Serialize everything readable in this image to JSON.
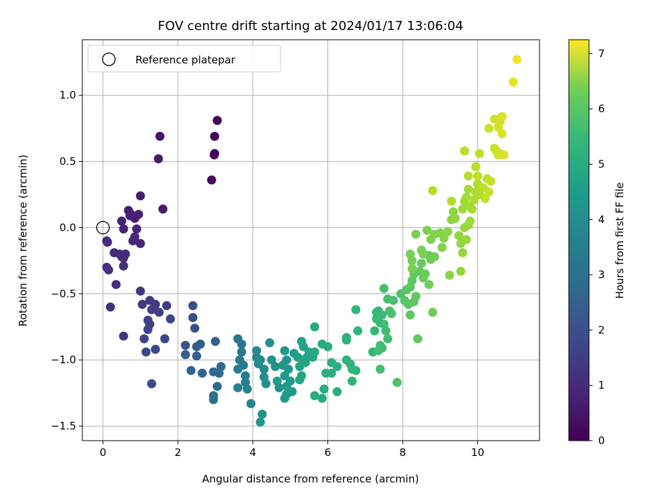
{
  "chart_data": {
    "type": "scatter",
    "title": "FOV centre drift starting at 2024/01/17 13:06:04",
    "xlabel": "Angular distance from reference (arcmin)",
    "ylabel": "Rotation from reference (arcmin)",
    "xlim": [
      -0.55,
      11.65
    ],
    "ylim": [
      -1.61,
      1.42
    ],
    "xticks": [
      0,
      2,
      4,
      6,
      8,
      10
    ],
    "xtick_labels": [
      "0",
      "2",
      "4",
      "6",
      "8",
      "10"
    ],
    "yticks": [
      -1.5,
      -1.0,
      -0.5,
      0.0,
      0.5,
      1.0
    ],
    "ytick_labels": [
      "−1.5",
      "−1.0",
      "−0.5",
      "0.0",
      "0.5",
      "1.0"
    ],
    "grid": true,
    "legend": {
      "placement": "upper-left",
      "entries": [
        {
          "label": "Reference platepar",
          "marker": "open-circle"
        }
      ]
    },
    "reference_point": {
      "x": 0,
      "y": 0
    },
    "colorbar": {
      "label": "Hours from first FF file",
      "colormap": "viridis",
      "range": [
        0,
        7.25
      ],
      "ticks": [
        0,
        1,
        2,
        3,
        4,
        5,
        6,
        7
      ],
      "tick_labels": [
        "0",
        "1",
        "2",
        "3",
        "4",
        "5",
        "6",
        "7"
      ]
    },
    "series": [
      {
        "columns": [
          "x",
          "y",
          "hours"
        ],
        "points": [
          [
            3.05,
            0.81,
            0.05
          ],
          [
            2.98,
            0.69,
            0.1
          ],
          [
            2.97,
            0.55,
            0.15
          ],
          [
            2.98,
            0.56,
            0.17
          ],
          [
            2.9,
            0.36,
            0.2
          ],
          [
            1.52,
            0.69,
            0.5
          ],
          [
            1.48,
            0.52,
            0.52
          ],
          [
            1.6,
            0.14,
            0.55
          ],
          [
            0.68,
            0.13,
            0.6
          ],
          [
            0.75,
            0.1,
            0.62
          ],
          [
            0.85,
            0.07,
            0.64
          ],
          [
            0.95,
            0.1,
            0.66
          ],
          [
            0.72,
            0.09,
            0.68
          ],
          [
            1.0,
            0.24,
            0.65
          ],
          [
            0.5,
            0.05,
            0.7
          ],
          [
            0.55,
            -0.01,
            0.72
          ],
          [
            0.9,
            -0.01,
            0.74
          ],
          [
            0.8,
            -0.1,
            0.76
          ],
          [
            1.0,
            -0.12,
            0.78
          ],
          [
            0.85,
            -0.07,
            0.8
          ],
          [
            0.1,
            -0.1,
            0.82
          ],
          [
            0.12,
            -0.11,
            0.84
          ],
          [
            0.3,
            -0.19,
            0.86
          ],
          [
            0.45,
            -0.2,
            0.88
          ],
          [
            0.6,
            -0.2,
            0.9
          ],
          [
            0.55,
            -0.23,
            0.92
          ],
          [
            0.5,
            -0.22,
            0.94
          ],
          [
            0.55,
            -0.29,
            0.96
          ],
          [
            0.1,
            -0.3,
            0.98
          ],
          [
            0.15,
            -0.32,
            1.0
          ],
          [
            0.35,
            -0.43,
            1.02
          ],
          [
            0.2,
            -0.6,
            1.05
          ],
          [
            0.55,
            -0.82,
            1.08
          ],
          [
            1.0,
            -0.48,
            1.2
          ],
          [
            1.05,
            -0.58,
            1.25
          ],
          [
            1.25,
            -0.55,
            1.28
          ],
          [
            1.4,
            -0.58,
            1.3
          ],
          [
            1.7,
            -0.59,
            1.33
          ],
          [
            1.3,
            -0.62,
            1.35
          ],
          [
            1.5,
            -0.64,
            1.38
          ],
          [
            1.2,
            -0.7,
            1.4
          ],
          [
            1.25,
            -0.73,
            1.42
          ],
          [
            1.2,
            -0.77,
            1.45
          ],
          [
            1.8,
            -0.69,
            1.48
          ],
          [
            1.1,
            -0.84,
            1.5
          ],
          [
            1.65,
            -0.84,
            1.53
          ],
          [
            1.4,
            -0.92,
            1.56
          ],
          [
            1.15,
            -0.94,
            1.6
          ],
          [
            1.3,
            -1.18,
            1.65
          ],
          [
            2.4,
            -0.59,
            1.7
          ],
          [
            2.4,
            -0.68,
            1.75
          ],
          [
            2.45,
            -0.76,
            1.8
          ],
          [
            2.2,
            -0.89,
            2.0
          ],
          [
            2.5,
            -0.9,
            2.05
          ],
          [
            2.6,
            -0.88,
            2.1
          ],
          [
            2.2,
            -0.96,
            2.15
          ],
          [
            2.5,
            -0.97,
            2.2
          ],
          [
            3.0,
            -0.86,
            2.25
          ],
          [
            2.35,
            -1.08,
            2.3
          ],
          [
            2.65,
            -1.1,
            2.35
          ],
          [
            2.95,
            -1.09,
            2.4
          ],
          [
            3.15,
            -1.05,
            2.45
          ],
          [
            3.1,
            -1.1,
            2.5
          ],
          [
            3.05,
            -1.2,
            2.55
          ],
          [
            2.95,
            -1.27,
            2.6
          ],
          [
            2.95,
            -1.3,
            2.62
          ],
          [
            3.6,
            -0.84,
            2.8
          ],
          [
            3.7,
            -0.88,
            2.85
          ],
          [
            3.7,
            -0.94,
            2.9
          ],
          [
            3.65,
            -1.0,
            2.95
          ],
          [
            3.75,
            -1.04,
            3.0
          ],
          [
            3.6,
            -1.07,
            3.05
          ],
          [
            3.8,
            -1.12,
            3.1
          ],
          [
            3.6,
            -1.21,
            3.15
          ],
          [
            3.8,
            -1.17,
            3.2
          ],
          [
            3.85,
            -1.22,
            3.25
          ],
          [
            3.95,
            -1.33,
            3.3
          ],
          [
            4.1,
            -0.93,
            3.35
          ],
          [
            4.1,
            -0.98,
            3.4
          ],
          [
            4.2,
            -1.0,
            3.45
          ],
          [
            4.15,
            -1.03,
            3.5
          ],
          [
            4.3,
            -1.07,
            3.55
          ],
          [
            4.3,
            -1.13,
            3.6
          ],
          [
            4.35,
            -1.18,
            3.62
          ],
          [
            4.45,
            -0.87,
            3.65
          ],
          [
            4.5,
            -1.0,
            3.7
          ],
          [
            4.6,
            -1.05,
            3.72
          ],
          [
            4.25,
            -1.41,
            3.74
          ],
          [
            4.2,
            -1.47,
            3.76
          ],
          [
            4.7,
            -1.21,
            3.78
          ],
          [
            4.85,
            -0.93,
            3.8
          ],
          [
            4.9,
            -1.0,
            3.82
          ],
          [
            4.8,
            -1.04,
            3.84
          ],
          [
            4.95,
            -1.07,
            3.86
          ],
          [
            4.85,
            -1.12,
            3.88
          ],
          [
            5.0,
            -1.16,
            3.9
          ],
          [
            4.9,
            -1.2,
            3.92
          ],
          [
            5.05,
            -1.24,
            3.94
          ],
          [
            4.9,
            -1.26,
            3.96
          ],
          [
            4.85,
            -1.29,
            3.98
          ],
          [
            4.65,
            -1.16,
            4.0
          ],
          [
            5.1,
            -0.95,
            4.05
          ],
          [
            5.2,
            -0.98,
            4.1
          ],
          [
            5.3,
            -0.86,
            4.12
          ],
          [
            5.35,
            -0.9,
            4.14
          ],
          [
            5.35,
            -1.0,
            4.16
          ],
          [
            5.25,
            -1.05,
            4.18
          ],
          [
            5.45,
            -0.98,
            4.2
          ],
          [
            5.4,
            -1.02,
            4.22
          ],
          [
            5.3,
            -1.12,
            4.24
          ],
          [
            5.25,
            -1.15,
            4.26
          ],
          [
            5.5,
            -0.94,
            4.28
          ],
          [
            5.6,
            -0.98,
            4.3
          ],
          [
            5.65,
            -0.94,
            4.32
          ],
          [
            5.65,
            -0.75,
            4.35
          ],
          [
            5.65,
            -1.27,
            4.38
          ],
          [
            5.85,
            -1.29,
            4.4
          ],
          [
            5.9,
            -1.22,
            4.42
          ],
          [
            5.85,
            -0.88,
            4.45
          ],
          [
            6.0,
            -0.9,
            4.48
          ],
          [
            5.95,
            -1.1,
            4.5
          ],
          [
            6.1,
            -1.02,
            4.52
          ],
          [
            6.1,
            -1.1,
            4.54
          ],
          [
            6.25,
            -1.05,
            4.56
          ],
          [
            6.25,
            -1.24,
            4.58
          ],
          [
            6.5,
            -0.85,
            4.6
          ],
          [
            6.5,
            -0.83,
            4.62
          ],
          [
            6.5,
            -1.0,
            4.64
          ],
          [
            6.6,
            -1.03,
            4.66
          ],
          [
            6.65,
            -1.07,
            4.68
          ],
          [
            6.75,
            -1.08,
            4.7
          ],
          [
            6.65,
            -1.16,
            4.72
          ],
          [
            6.75,
            -0.62,
            4.74
          ],
          [
            6.8,
            -0.78,
            4.76
          ],
          [
            7.2,
            -0.94,
            4.8
          ],
          [
            7.25,
            -0.78,
            4.82
          ],
          [
            7.3,
            -0.64,
            4.84
          ],
          [
            7.35,
            -0.63,
            4.86
          ],
          [
            7.3,
            -0.69,
            4.88
          ],
          [
            7.4,
            -0.72,
            4.9
          ],
          [
            7.45,
            -0.66,
            4.92
          ],
          [
            7.5,
            -0.73,
            4.94
          ],
          [
            7.4,
            -0.89,
            4.96
          ],
          [
            7.45,
            -0.91,
            4.98
          ],
          [
            7.35,
            -0.93,
            5.0
          ],
          [
            7.55,
            -0.78,
            5.02
          ],
          [
            7.6,
            -0.84,
            5.04
          ],
          [
            7.4,
            -1.07,
            5.06
          ],
          [
            7.5,
            -0.46,
            5.08
          ],
          [
            7.6,
            -0.54,
            5.1
          ],
          [
            7.65,
            -0.63,
            5.12
          ],
          [
            7.7,
            -0.65,
            5.14
          ],
          [
            7.75,
            -0.55,
            5.16
          ],
          [
            7.85,
            -1.17,
            5.18
          ],
          [
            7.95,
            -0.5,
            5.25
          ],
          [
            8.05,
            -0.55,
            5.3
          ],
          [
            8.1,
            -0.47,
            5.32
          ],
          [
            8.15,
            -0.58,
            5.34
          ],
          [
            8.2,
            -0.45,
            5.36
          ],
          [
            8.2,
            -0.66,
            5.38
          ],
          [
            8.25,
            -0.4,
            5.4
          ],
          [
            8.3,
            -0.35,
            5.42
          ],
          [
            8.3,
            -0.56,
            5.44
          ],
          [
            8.35,
            -0.52,
            5.46
          ],
          [
            8.4,
            -0.84,
            5.48
          ],
          [
            8.45,
            -0.33,
            5.5
          ],
          [
            8.5,
            -0.27,
            5.52
          ],
          [
            8.55,
            -0.38,
            5.54
          ],
          [
            8.6,
            -0.35,
            5.56
          ],
          [
            8.7,
            -0.21,
            5.58
          ],
          [
            8.75,
            -0.24,
            5.6
          ],
          [
            8.8,
            -0.64,
            5.62
          ],
          [
            8.85,
            -0.22,
            5.64
          ],
          [
            8.7,
            -0.43,
            5.66
          ],
          [
            8.2,
            -0.2,
            5.7
          ],
          [
            8.25,
            -0.25,
            5.72
          ],
          [
            8.25,
            -0.31,
            5.74
          ],
          [
            8.35,
            -0.05,
            5.76
          ],
          [
            8.5,
            -0.17,
            5.78
          ],
          [
            8.55,
            -0.2,
            5.8
          ],
          [
            8.65,
            -0.02,
            5.82
          ],
          [
            8.75,
            -0.09,
            5.84
          ],
          [
            8.85,
            -0.05,
            5.86
          ],
          [
            9.0,
            -0.04,
            5.88
          ],
          [
            9.05,
            -0.15,
            5.9
          ],
          [
            9.1,
            -0.08,
            5.92
          ],
          [
            9.2,
            -0.03,
            5.94
          ],
          [
            9.25,
            -0.36,
            5.96
          ],
          [
            9.3,
            0.06,
            5.98
          ],
          [
            9.35,
            0.12,
            6.0
          ],
          [
            9.4,
            0.07,
            6.02
          ],
          [
            9.5,
            -0.06,
            6.04
          ],
          [
            9.55,
            -0.12,
            6.06
          ],
          [
            9.55,
            -0.33,
            6.08
          ],
          [
            9.6,
            -0.19,
            6.1
          ],
          [
            9.65,
            0.0,
            6.12
          ],
          [
            9.7,
            -0.09,
            6.14
          ],
          [
            9.75,
            0.02,
            6.16
          ],
          [
            9.8,
            0.05,
            6.18
          ],
          [
            9.6,
            0.14,
            6.2
          ],
          [
            9.65,
            0.2,
            6.22
          ],
          [
            9.7,
            0.23,
            6.24
          ],
          [
            9.75,
            0.29,
            6.26
          ],
          [
            9.8,
            0.16,
            6.28
          ],
          [
            9.85,
            0.14,
            6.3
          ],
          [
            9.9,
            0.21,
            6.32
          ],
          [
            9.95,
            0.27,
            6.34
          ],
          [
            10.0,
            0.33,
            6.36
          ],
          [
            10.05,
            0.25,
            6.38
          ],
          [
            9.3,
            0.2,
            6.4
          ],
          [
            8.8,
            0.28,
            6.42
          ],
          [
            9.65,
            0.58,
            6.45
          ],
          [
            9.75,
            0.39,
            6.48
          ],
          [
            9.95,
            0.46,
            6.5
          ],
          [
            10.0,
            0.39,
            6.52
          ],
          [
            10.05,
            0.56,
            6.54
          ],
          [
            10.15,
            0.3,
            6.56
          ],
          [
            10.2,
            0.22,
            6.58
          ],
          [
            10.25,
            0.37,
            6.6
          ],
          [
            10.3,
            0.27,
            6.62
          ],
          [
            10.35,
            0.35,
            6.64
          ],
          [
            10.3,
            0.75,
            6.66
          ],
          [
            10.45,
            0.6,
            6.68
          ],
          [
            10.5,
            0.58,
            6.7
          ],
          [
            10.55,
            0.55,
            6.72
          ],
          [
            10.45,
            0.82,
            6.74
          ],
          [
            10.55,
            0.76,
            6.76
          ],
          [
            10.6,
            0.8,
            6.78
          ],
          [
            10.65,
            0.84,
            6.8
          ],
          [
            10.65,
            0.71,
            6.82
          ],
          [
            10.6,
            0.56,
            6.84
          ],
          [
            10.7,
            0.55,
            6.86
          ],
          [
            10.95,
            1.1,
            7.0
          ],
          [
            11.05,
            1.27,
            7.1
          ]
        ]
      }
    ]
  }
}
